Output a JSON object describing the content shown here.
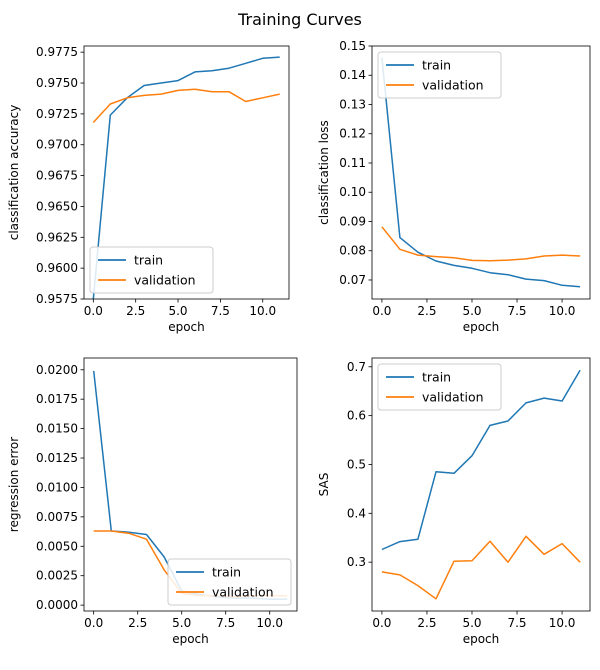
{
  "figure": {
    "title": "Training Curves"
  },
  "chart_data": [
    {
      "type": "line",
      "xlabel": "epoch",
      "ylabel": "classification accuracy",
      "xlim": [
        -0.55,
        11.55
      ],
      "ylim": [
        0.9575,
        0.978
      ],
      "xticks": [
        0.0,
        2.5,
        5.0,
        7.5,
        10.0
      ],
      "xtick_labels": [
        "0.0",
        "2.5",
        "5.0",
        "7.5",
        "10.0"
      ],
      "yticks": [
        0.9575,
        0.96,
        0.9625,
        0.965,
        0.9675,
        0.97,
        0.9725,
        0.975,
        0.9775
      ],
      "ytick_labels": [
        "0.9575",
        "0.9600",
        "0.9625",
        "0.9650",
        "0.9675",
        "0.9700",
        "0.9725",
        "0.9750",
        "0.9775"
      ],
      "legend_position": "lower-left",
      "grid": false,
      "x": [
        0,
        1,
        2,
        3,
        4,
        5,
        6,
        7,
        8,
        9,
        10,
        11
      ],
      "series": [
        {
          "name": "train",
          "color": "#1f77b4",
          "values": [
            0.9575,
            0.9724,
            0.9738,
            0.9748,
            0.975,
            0.9752,
            0.9759,
            0.976,
            0.9762,
            0.9766,
            0.977,
            0.9771
          ]
        },
        {
          "name": "validation",
          "color": "#ff7f0e",
          "values": [
            0.9718,
            0.9733,
            0.9738,
            0.974,
            0.9741,
            0.9744,
            0.9745,
            0.9743,
            0.9743,
            0.9735,
            0.9738,
            0.9741
          ]
        }
      ]
    },
    {
      "type": "line",
      "xlabel": "epoch",
      "ylabel": "classification loss",
      "xlim": [
        -0.55,
        11.55
      ],
      "ylim": [
        0.0635,
        0.15
      ],
      "xticks": [
        0.0,
        2.5,
        5.0,
        7.5,
        10.0
      ],
      "xtick_labels": [
        "0.0",
        "2.5",
        "5.0",
        "7.5",
        "10.0"
      ],
      "yticks": [
        0.07,
        0.08,
        0.09,
        0.1,
        0.11,
        0.12,
        0.13,
        0.14,
        0.15
      ],
      "ytick_labels": [
        "0.07",
        "0.08",
        "0.09",
        "0.10",
        "0.11",
        "0.12",
        "0.13",
        "0.14",
        "0.15"
      ],
      "legend_position": "upper-left",
      "grid": false,
      "x": [
        0,
        1,
        2,
        3,
        4,
        5,
        6,
        7,
        8,
        9,
        10,
        11
      ],
      "series": [
        {
          "name": "train",
          "color": "#1f77b4",
          "values": [
            0.146,
            0.0845,
            0.0795,
            0.0765,
            0.075,
            0.074,
            0.0725,
            0.0718,
            0.0703,
            0.0698,
            0.0682,
            0.0677
          ]
        },
        {
          "name": "validation",
          "color": "#ff7f0e",
          "values": [
            0.0882,
            0.0805,
            0.0785,
            0.078,
            0.0776,
            0.0767,
            0.0766,
            0.0768,
            0.0772,
            0.0782,
            0.0785,
            0.0782
          ]
        }
      ]
    },
    {
      "type": "line",
      "xlabel": "epoch",
      "ylabel": "regression error",
      "xlim": [
        -0.55,
        11.55
      ],
      "ylim": [
        -0.0005,
        0.021
      ],
      "xticks": [
        0.0,
        2.5,
        5.0,
        7.5,
        10.0
      ],
      "xtick_labels": [
        "0.0",
        "2.5",
        "5.0",
        "7.5",
        "10.0"
      ],
      "yticks": [
        0.0,
        0.0025,
        0.005,
        0.0075,
        0.01,
        0.0125,
        0.015,
        0.0175,
        0.02
      ],
      "ytick_labels": [
        "0.0000",
        "0.0025",
        "0.0050",
        "0.0075",
        "0.0100",
        "0.0125",
        "0.0150",
        "0.0175",
        "0.0200"
      ],
      "legend_position": "lower-right",
      "grid": false,
      "x": [
        0,
        1,
        2,
        3,
        4,
        5,
        6,
        7,
        8,
        9,
        10,
        11
      ],
      "series": [
        {
          "name": "train",
          "color": "#1f77b4",
          "values": [
            0.0199,
            0.0063,
            0.0062,
            0.006,
            0.0041,
            0.0012,
            0.0009,
            0.0007,
            0.0006,
            0.0006,
            0.0005,
            0.0005
          ]
        },
        {
          "name": "validation",
          "color": "#ff7f0e",
          "values": [
            0.0063,
            0.0063,
            0.0061,
            0.0056,
            0.003,
            0.001,
            0.0008,
            0.0008,
            0.0007,
            0.0008,
            0.0008,
            0.0008
          ]
        }
      ]
    },
    {
      "type": "line",
      "xlabel": "epoch",
      "ylabel": "SAS",
      "xlim": [
        -0.55,
        11.55
      ],
      "ylim": [
        0.2,
        0.718
      ],
      "xticks": [
        0.0,
        2.5,
        5.0,
        7.5,
        10.0
      ],
      "xtick_labels": [
        "0.0",
        "2.5",
        "5.0",
        "7.5",
        "10.0"
      ],
      "yticks": [
        0.3,
        0.4,
        0.5,
        0.6,
        0.7
      ],
      "ytick_labels": [
        "0.3",
        "0.4",
        "0.5",
        "0.6",
        "0.7"
      ],
      "legend_position": "upper-left",
      "grid": false,
      "x": [
        0,
        1,
        2,
        3,
        4,
        5,
        6,
        7,
        8,
        9,
        10,
        11
      ],
      "series": [
        {
          "name": "train",
          "color": "#1f77b4",
          "values": [
            0.326,
            0.342,
            0.347,
            0.485,
            0.482,
            0.518,
            0.58,
            0.589,
            0.626,
            0.636,
            0.63,
            0.693
          ]
        },
        {
          "name": "validation",
          "color": "#ff7f0e",
          "values": [
            0.28,
            0.274,
            0.252,
            0.225,
            0.302,
            0.303,
            0.343,
            0.3,
            0.353,
            0.316,
            0.338,
            0.3
          ]
        }
      ]
    }
  ]
}
